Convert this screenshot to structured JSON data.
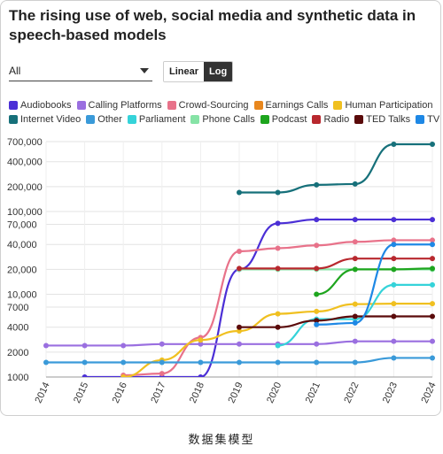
{
  "title": "The rising use of web, social media and synthetic data in speech-based models",
  "controls": {
    "select_value": "All",
    "scale_options": [
      "Linear",
      "Log"
    ],
    "active_scale": "Log"
  },
  "caption": "数据集模型",
  "chart_data": {
    "type": "line",
    "scale": "log",
    "x": [
      2014,
      2015,
      2016,
      2017,
      2018,
      2019,
      2020,
      2021,
      2022,
      2023,
      2024
    ],
    "xlim": [
      2014,
      2024
    ],
    "ylim": [
      1000,
      700000
    ],
    "y_ticks": [
      1000,
      2000,
      4000,
      7000,
      10000,
      20000,
      40000,
      70000,
      100000,
      200000,
      400000,
      700000
    ],
    "y_tick_labels": [
      "1000",
      "2000",
      "4000",
      "7000",
      "10,000",
      "20,000",
      "40,000",
      "70,000",
      "100,000",
      "200,000",
      "400,000",
      "700,000"
    ],
    "grid": true,
    "legend_placement": "top",
    "series": [
      {
        "name": "Audiobooks",
        "color": "#4b2fd6",
        "points": [
          [
            2015,
            1000
          ],
          [
            2016,
            1000
          ],
          [
            2017,
            1000
          ],
          [
            2018,
            1000
          ],
          [
            2019,
            20000
          ],
          [
            2020,
            72000
          ],
          [
            2021,
            80000
          ],
          [
            2022,
            80000
          ],
          [
            2023,
            80000
          ],
          [
            2024,
            80000
          ]
        ]
      },
      {
        "name": "Calling Platforms",
        "color": "#9a6fe0",
        "points": [
          [
            2014,
            2400
          ],
          [
            2015,
            2400
          ],
          [
            2016,
            2400
          ],
          [
            2017,
            2500
          ],
          [
            2018,
            2500
          ],
          [
            2019,
            2500
          ],
          [
            2020,
            2500
          ],
          [
            2021,
            2500
          ],
          [
            2022,
            2700
          ],
          [
            2023,
            2700
          ],
          [
            2024,
            2700
          ]
        ]
      },
      {
        "name": "Crowd-Sourcing",
        "color": "#e8728a",
        "points": [
          [
            2016,
            1050
          ],
          [
            2017,
            1100
          ],
          [
            2018,
            3000
          ],
          [
            2019,
            33000
          ],
          [
            2020,
            36000
          ],
          [
            2021,
            39000
          ],
          [
            2022,
            43000
          ],
          [
            2023,
            45000
          ],
          [
            2024,
            45000
          ]
        ]
      },
      {
        "name": "Earnings Calls",
        "color": "#e8871e",
        "points": []
      },
      {
        "name": "Human Participation",
        "color": "#f0c020",
        "points": [
          [
            2016,
            1000
          ],
          [
            2017,
            1600
          ],
          [
            2018,
            2800
          ],
          [
            2019,
            3600
          ],
          [
            2020,
            5800
          ],
          [
            2021,
            6200
          ],
          [
            2022,
            7600
          ],
          [
            2023,
            7700
          ],
          [
            2024,
            7700
          ]
        ]
      },
      {
        "name": "Internet Video",
        "color": "#16707a",
        "points": [
          [
            2019,
            170000
          ],
          [
            2020,
            170000
          ],
          [
            2021,
            210000
          ],
          [
            2022,
            215000
          ],
          [
            2023,
            650000
          ],
          [
            2024,
            650000
          ]
        ]
      },
      {
        "name": "Other",
        "color": "#3a9ad9",
        "points": [
          [
            2014,
            1500
          ],
          [
            2015,
            1500
          ],
          [
            2016,
            1500
          ],
          [
            2017,
            1500
          ],
          [
            2018,
            1500
          ],
          [
            2019,
            1500
          ],
          [
            2020,
            1500
          ],
          [
            2021,
            1500
          ],
          [
            2022,
            1500
          ],
          [
            2023,
            1700
          ],
          [
            2024,
            1700
          ]
        ]
      },
      {
        "name": "Parliament",
        "color": "#35d3d9",
        "points": [
          [
            2020,
            2400
          ],
          [
            2021,
            5000
          ],
          [
            2022,
            5000
          ],
          [
            2023,
            13000
          ],
          [
            2024,
            13000
          ]
        ]
      },
      {
        "name": "Phone Calls",
        "color": "#86e3a6",
        "points": [
          [
            2019,
            20000
          ],
          [
            2020,
            20000
          ],
          [
            2021,
            20000
          ],
          [
            2022,
            20000
          ],
          [
            2023,
            20000
          ],
          [
            2024,
            20000
          ]
        ]
      },
      {
        "name": "Podcast",
        "color": "#1ea51e",
        "points": [
          [
            2021,
            10000
          ],
          [
            2022,
            20000
          ],
          [
            2023,
            20000
          ],
          [
            2024,
            20500
          ]
        ]
      },
      {
        "name": "Radio",
        "color": "#b8282e",
        "points": [
          [
            2019,
            20500
          ],
          [
            2020,
            20500
          ],
          [
            2021,
            20500
          ],
          [
            2022,
            27000
          ],
          [
            2023,
            27000
          ],
          [
            2024,
            27000
          ]
        ]
      },
      {
        "name": "TED Talks",
        "color": "#5a0a0a",
        "points": [
          [
            2019,
            4000
          ],
          [
            2020,
            4000
          ],
          [
            2021,
            4800
          ],
          [
            2022,
            5400
          ],
          [
            2023,
            5400
          ],
          [
            2024,
            5400
          ]
        ]
      },
      {
        "name": "TV",
        "color": "#1e88e5",
        "points": [
          [
            2021,
            4300
          ],
          [
            2022,
            4500
          ],
          [
            2023,
            40000
          ],
          [
            2024,
            40000
          ]
        ]
      }
    ]
  }
}
